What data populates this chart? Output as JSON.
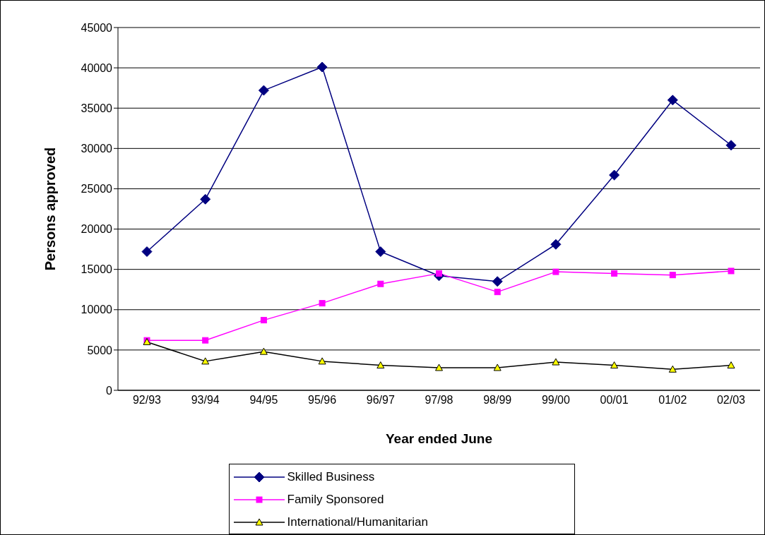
{
  "chart_data": {
    "type": "line",
    "xlabel": "Year ended June",
    "ylabel": "Persons approved",
    "categories": [
      "92/93",
      "93/94",
      "94/95",
      "95/96",
      "96/97",
      "97/98",
      "98/99",
      "99/00",
      "00/01",
      "01/02",
      "02/03"
    ],
    "series": [
      {
        "name": "Skilled Business",
        "color": "#000080",
        "marker": "diamond",
        "values": [
          17200,
          23700,
          37200,
          40100,
          17200,
          14200,
          13500,
          18100,
          26700,
          36000,
          30400
        ]
      },
      {
        "name": "Family Sponsored",
        "color": "#ff00ff",
        "marker": "square",
        "values": [
          6200,
          6200,
          8700,
          10800,
          13200,
          14500,
          12200,
          14700,
          14500,
          14300,
          14800
        ]
      },
      {
        "name": "International/Humanitarian",
        "color": "#000000",
        "marker": "triangle",
        "values": [
          6000,
          3600,
          4800,
          3600,
          3100,
          2800,
          2800,
          3500,
          3100,
          2600,
          3100
        ]
      }
    ],
    "ylim": [
      0,
      45000
    ],
    "yticks": [
      0,
      5000,
      10000,
      15000,
      20000,
      25000,
      30000,
      35000,
      40000,
      45000
    ],
    "grid": "y",
    "legend": "bottom"
  }
}
